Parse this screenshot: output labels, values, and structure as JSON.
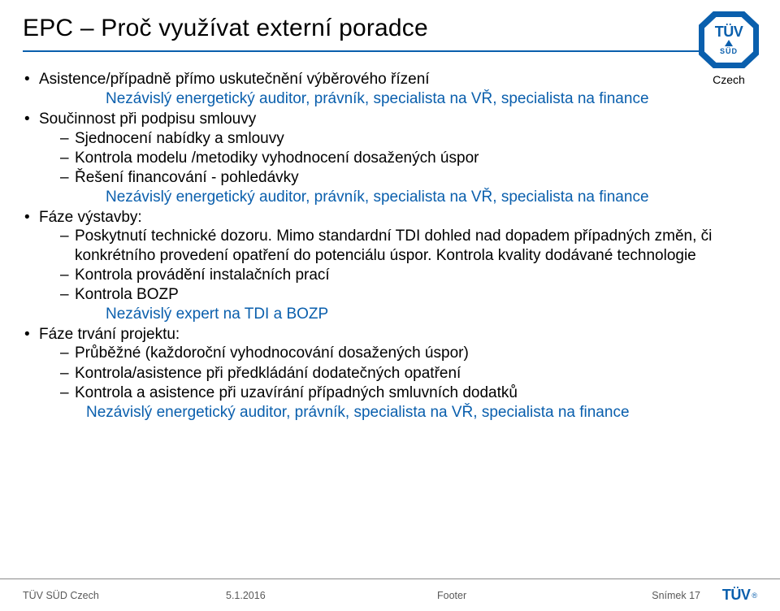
{
  "slide": {
    "title": "EPC – Proč využívat externí poradce",
    "logo": {
      "tuv": "TÜV",
      "sud": "SÜD",
      "czech": "Czech"
    }
  },
  "b1": {
    "text": "Asistence/případně přímo uskutečnění výběrového řízení",
    "sub": "Nezávislý energetický auditor, právník, specialista na VŘ, specialista na finance"
  },
  "b2": {
    "text": "Součinnost při podpisu smlouvy",
    "s1": "Sjednocení nabídky a smlouvy",
    "s2": "Kontrola modelu /metodiky vyhodnocení dosažených úspor",
    "s3": "Řešení financování - pohledávky",
    "sub": "Nezávislý energetický auditor, právník, specialista na VŘ, specialista na finance"
  },
  "b3": {
    "text": "Fáze výstavby:",
    "s1": "Poskytnutí technické dozoru. Mimo standardní TDI dohled nad dopadem případných změn, či konkrétního provedení opatření do potenciálu úspor. Kontrola kvality dodávané technologie",
    "s2": "Kontrola provádění instalačních prací",
    "s3": "Kontrola BOZP",
    "sub": "Nezávislý expert na TDI a BOZP"
  },
  "b4": {
    "text": "Fáze trvání projektu:",
    "s1": "Průběžné (každoroční vyhodnocování dosažených úspor)",
    "s2": "Kontrola/asistence při předkládání dodatečných opatření",
    "s3": "Kontrola a asistence při uzavírání případných smluvních dodatků",
    "sub": "Nezávislý energetický auditor, právník, specialista na VŘ, specialista na finance"
  },
  "footer": {
    "left": "TÜV SÜD Czech",
    "date": "5.1.2016",
    "mid": "Footer",
    "slide": "Snímek 17",
    "logo": "TÜV",
    "reg": "®"
  }
}
